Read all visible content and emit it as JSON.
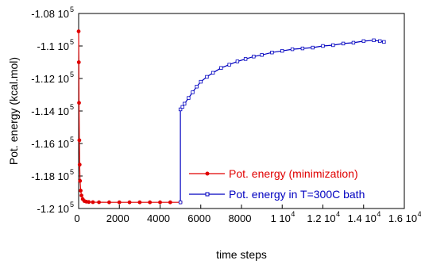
{
  "chart_data": {
    "type": "line",
    "xlabel": "time steps",
    "ylabel": "Pot. energy (kcal.mol)",
    "xlim": [
      0,
      16000
    ],
    "ylim": [
      -120000,
      -108000
    ],
    "grid": false,
    "legend_placement": "bottom-right",
    "x_ticks": [
      {
        "value": 0,
        "label": "0",
        "exp": ""
      },
      {
        "value": 2000,
        "label": "2000",
        "exp": ""
      },
      {
        "value": 4000,
        "label": "4000",
        "exp": ""
      },
      {
        "value": 6000,
        "label": "6000",
        "exp": ""
      },
      {
        "value": 8000,
        "label": "8000",
        "exp": ""
      },
      {
        "value": 10000,
        "label": "1 10",
        "exp": "4"
      },
      {
        "value": 12000,
        "label": "1.2 10",
        "exp": "4"
      },
      {
        "value": 14000,
        "label": "1.4 10",
        "exp": "4"
      },
      {
        "value": 16000,
        "label": "1.6 10",
        "exp": "4"
      }
    ],
    "y_ticks": [
      {
        "value": -108000,
        "label": "-1.08 10",
        "exp": "5"
      },
      {
        "value": -110000,
        "label": "-1.1 10",
        "exp": "5"
      },
      {
        "value": -112000,
        "label": "-1.12 10",
        "exp": "5"
      },
      {
        "value": -114000,
        "label": "-1.14 10",
        "exp": "5"
      },
      {
        "value": -116000,
        "label": "-1.16 10",
        "exp": "5"
      },
      {
        "value": -118000,
        "label": "-1.18 10",
        "exp": "5"
      },
      {
        "value": -120000,
        "label": "-1.2 10",
        "exp": "5"
      }
    ],
    "series": [
      {
        "name": "Pot. energy (minimization)",
        "color": "#e00000",
        "marker": "filled-circle",
        "x": [
          0,
          10,
          20,
          35,
          50,
          70,
          100,
          140,
          200,
          280,
          380,
          500,
          700,
          1000,
          1500,
          2000,
          2500,
          3000,
          3500,
          4000,
          4500,
          5000
        ],
        "y": [
          -109100,
          -111000,
          -113500,
          -115800,
          -117300,
          -118300,
          -118900,
          -119200,
          -119420,
          -119540,
          -119580,
          -119600,
          -119610,
          -119615,
          -119618,
          -119620,
          -119620,
          -119620,
          -119620,
          -119620,
          -119620,
          -119620
        ]
      },
      {
        "name": "Pot. energy in T=300C bath",
        "color": "#0000c0",
        "marker": "open-square",
        "x": [
          5000,
          5000,
          5100,
          5200,
          5400,
          5600,
          5800,
          6000,
          6300,
          6600,
          7000,
          7400,
          7800,
          8200,
          8600,
          9000,
          9500,
          10000,
          10500,
          11000,
          11500,
          12000,
          12500,
          13000,
          13500,
          14000,
          14500,
          14800,
          15000
        ],
        "y": [
          -119620,
          -113900,
          -113750,
          -113550,
          -113200,
          -112850,
          -112500,
          -112200,
          -111900,
          -111650,
          -111350,
          -111150,
          -110950,
          -110800,
          -110650,
          -110550,
          -110400,
          -110300,
          -110200,
          -110150,
          -110100,
          -110000,
          -109950,
          -109850,
          -109800,
          -109700,
          -109650,
          -109700,
          -109750
        ]
      }
    ]
  }
}
